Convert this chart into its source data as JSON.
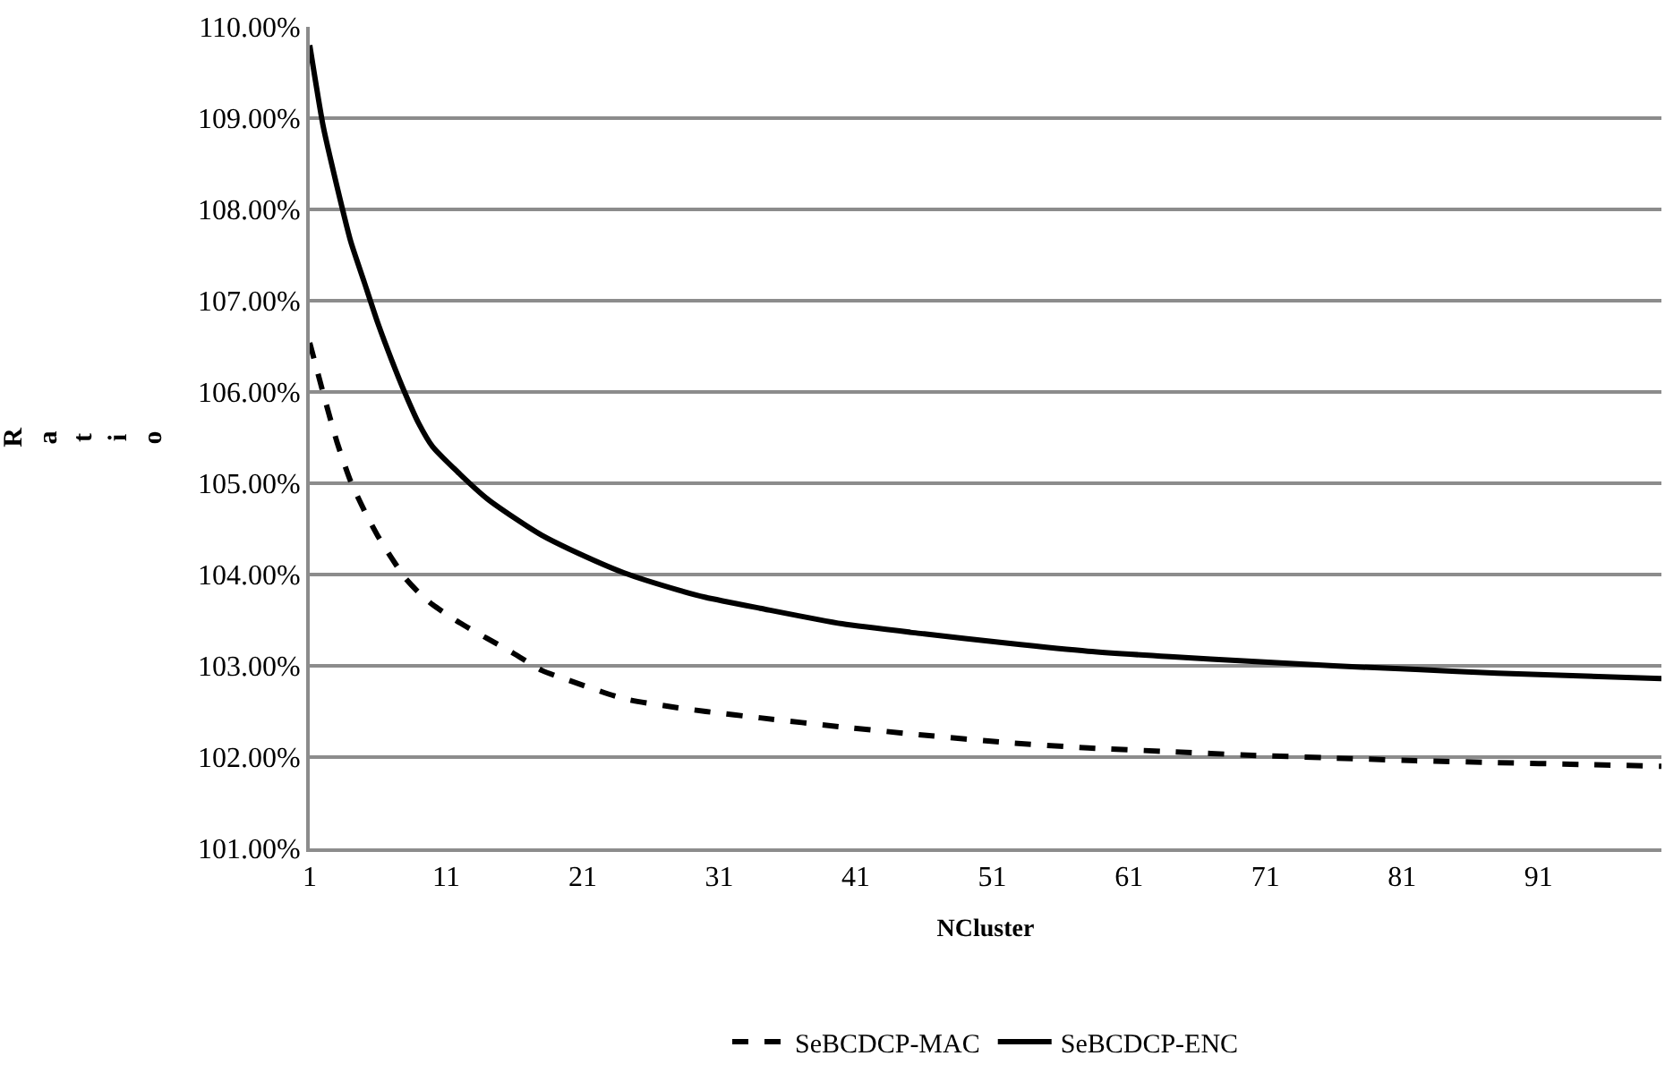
{
  "chart_data": {
    "type": "line",
    "xlabel": "NCluster",
    "ylabel": "Ratio",
    "x": [
      1,
      2,
      3,
      4,
      5,
      6,
      7,
      8,
      9,
      10,
      12,
      14,
      16,
      18,
      20,
      24,
      28,
      30,
      34,
      40,
      46,
      52,
      58,
      64,
      70,
      76,
      82,
      88,
      94,
      100
    ],
    "series": [
      {
        "name": "SeBCDCP-MAC",
        "color": "#000000",
        "line_style": "dashed",
        "values": [
          106.54,
          105.98,
          105.45,
          105.02,
          104.7,
          104.42,
          104.18,
          103.96,
          103.8,
          103.67,
          103.47,
          103.3,
          103.13,
          102.95,
          102.84,
          102.64,
          102.54,
          102.5,
          102.43,
          102.33,
          102.24,
          102.16,
          102.1,
          102.06,
          102.02,
          101.99,
          101.96,
          101.94,
          101.92,
          101.9
        ]
      },
      {
        "name": "SeBCDCP-ENC",
        "color": "#000000",
        "line_style": "solid",
        "values": [
          109.8,
          108.9,
          108.25,
          107.65,
          107.2,
          106.75,
          106.35,
          105.98,
          105.65,
          105.4,
          105.1,
          104.83,
          104.62,
          104.43,
          104.28,
          104.02,
          103.83,
          103.75,
          103.63,
          103.46,
          103.35,
          103.25,
          103.16,
          103.1,
          103.05,
          103.0,
          102.96,
          102.92,
          102.89,
          102.86
        ]
      }
    ],
    "xlim": [
      1,
      100
    ],
    "xticks": [
      1,
      11,
      21,
      31,
      41,
      51,
      61,
      71,
      81,
      91
    ],
    "ylim": [
      101,
      110
    ],
    "yticks": [
      {
        "value": 101,
        "label": "101.00%"
      },
      {
        "value": 102,
        "label": "102.00%"
      },
      {
        "value": 103,
        "label": "103.00%"
      },
      {
        "value": 104,
        "label": "104.00%"
      },
      {
        "value": 105,
        "label": "105.00%"
      },
      {
        "value": 106,
        "label": "106.00%"
      },
      {
        "value": 107,
        "label": "107.00%"
      },
      {
        "value": 108,
        "label": "108.00%"
      },
      {
        "value": 109,
        "label": "109.00%"
      },
      {
        "value": 110,
        "label": "110.00%"
      }
    ],
    "grid": "y",
    "legend": "bottom",
    "marker": "none"
  }
}
